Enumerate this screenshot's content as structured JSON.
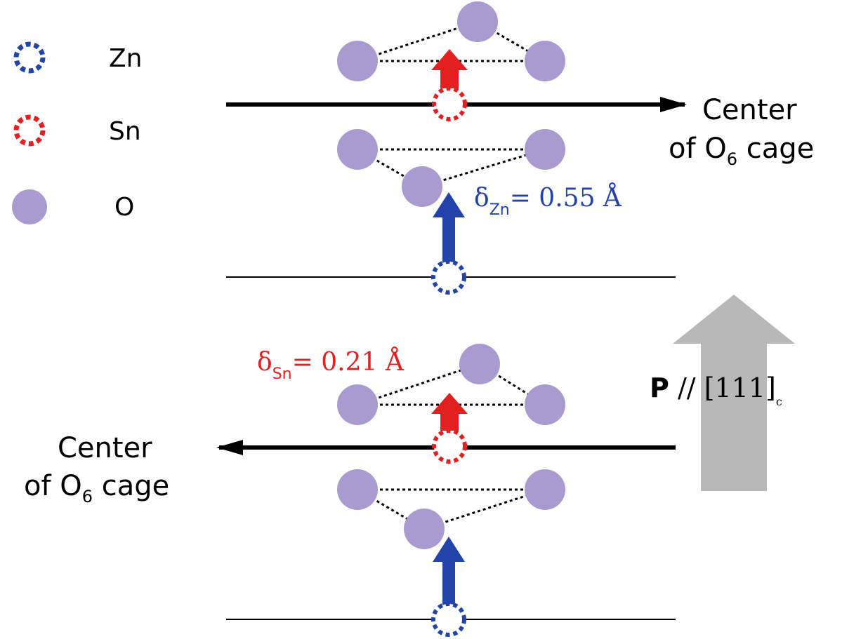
{
  "legend": {
    "items": [
      {
        "label": "Zn",
        "symbol": "dashed-circle",
        "color": "#2244aa"
      },
      {
        "label": "Sn",
        "symbol": "dashed-circle",
        "color": "#e32020"
      },
      {
        "label": "O",
        "symbol": "filled-circle",
        "color": "#a99bd0"
      }
    ]
  },
  "labels": {
    "center_top_line1": "Center",
    "center_top_line2_prefix": "of O",
    "center_top_sub": "6",
    "center_top_line2_suffix": " cage",
    "center_bottom_line1": "Center",
    "center_bottom_line2_prefix": "of O",
    "center_bottom_sub": "6",
    "center_bottom_line2_suffix": " cage",
    "delta_zn_symbol": "δ",
    "delta_zn_sub": "Zn",
    "delta_zn_value": "= 0.55 Å",
    "delta_sn_symbol": "δ",
    "delta_sn_sub": "Sn",
    "delta_sn_value": "= 0.21 Å",
    "polarization_bold": "P",
    "polarization_text": " // [111]",
    "polarization_sub": "c"
  },
  "colors": {
    "zn": "#2244aa",
    "sn": "#e32020",
    "oxygen": "#a99bd0",
    "polarization_arrow": "#b8b8b8",
    "line": "#000000"
  }
}
